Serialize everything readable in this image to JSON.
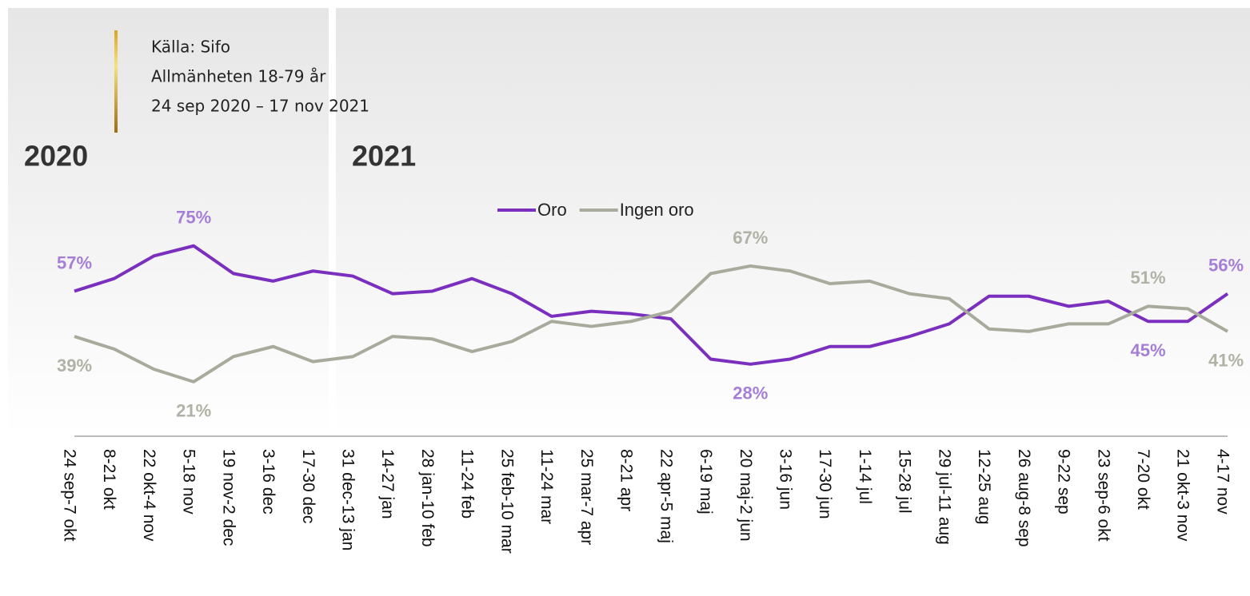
{
  "chart_data": {
    "type": "line",
    "source": [
      "Källa: Sifo",
      "Allmänheten 18-79 år",
      "24 sep 2020 – 17 nov 2021"
    ],
    "year_labels": [
      "2020",
      "2021"
    ],
    "categories": [
      "24 sep-7 okt",
      "8-21 okt",
      "22 okt-4 nov",
      "5-18 nov",
      "19 nov-2 dec",
      "3-16 dec",
      "17-30 dec",
      "31 dec-13 jan",
      "14-27 jan",
      "28 jan-10 feb",
      "11-24 feb",
      "25 feb-10 mar",
      "11-24 mar",
      "25 mar-7 apr",
      "8-21 apr",
      "22 apr-5 maj",
      "6-19 maj",
      "20 maj-2 jun",
      "3-16 jun",
      "17-30 jun",
      "1-14 jul",
      "15-28 jul",
      "29 jul-11 aug",
      "12-25 aug",
      "26 aug-8 sep",
      "9-22 sep",
      "23 sep-6 okt",
      "7-20 okt",
      "21 okt-3 nov",
      "4-17 nov"
    ],
    "series": [
      {
        "name": "Oro",
        "color": "#7b2fbe",
        "label_color": "#a57fd6",
        "values": [
          57,
          62,
          71,
          75,
          64,
          61,
          65,
          63,
          56,
          57,
          62,
          56,
          47,
          49,
          48,
          46,
          30,
          28,
          30,
          35,
          35,
          39,
          44,
          55,
          55,
          51,
          53,
          45,
          45,
          56
        ],
        "value_labels": [
          "57%",
          null,
          null,
          "75%",
          null,
          null,
          null,
          null,
          null,
          null,
          null,
          null,
          null,
          null,
          null,
          null,
          null,
          "28%",
          null,
          null,
          null,
          null,
          null,
          null,
          null,
          null,
          null,
          "45%",
          null,
          "56%"
        ]
      },
      {
        "name": "Ingen oro",
        "color": "#a8ab9c",
        "label_color": "#b0b2a5",
        "values": [
          39,
          34,
          26,
          21,
          31,
          35,
          29,
          31,
          39,
          38,
          33,
          37,
          45,
          43,
          45,
          49,
          64,
          67,
          65,
          60,
          61,
          56,
          54,
          42,
          41,
          44,
          44,
          51,
          50,
          41
        ],
        "value_labels": [
          "39%",
          null,
          null,
          "21%",
          null,
          null,
          null,
          null,
          null,
          null,
          null,
          null,
          null,
          null,
          null,
          null,
          null,
          "67%",
          null,
          null,
          null,
          null,
          null,
          null,
          null,
          null,
          null,
          "51%",
          null,
          "41%"
        ]
      }
    ],
    "ylim": [
      0,
      90
    ]
  }
}
